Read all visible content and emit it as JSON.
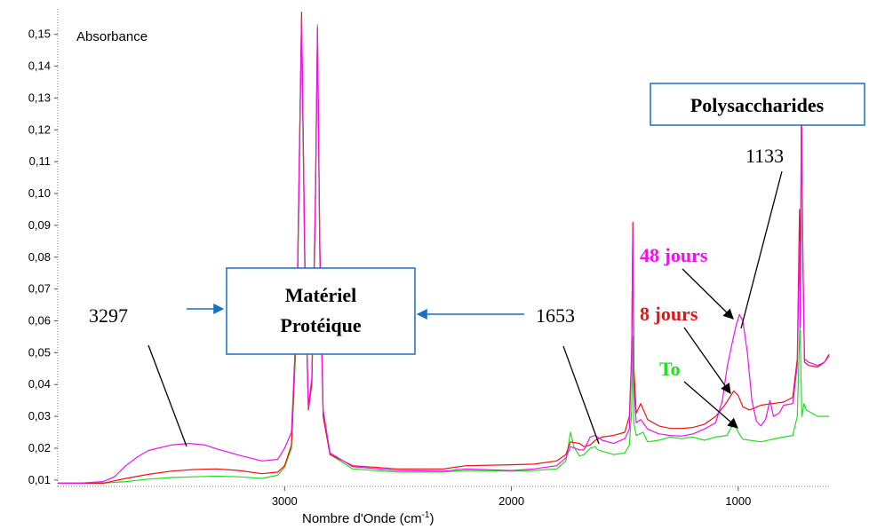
{
  "chart_data": {
    "type": "line",
    "title": "",
    "ylabel": "Absorbance",
    "xlabel_main": "Nombre d'Onde (cm",
    "xlabel_sup": "-1",
    "xlabel_close": ")",
    "x_reversed": true,
    "xlim": [
      4000,
      600
    ],
    "ylim": [
      0.008,
      0.158
    ],
    "y_ticks": [
      {
        "value": 0.01,
        "label": "0,01"
      },
      {
        "value": 0.02,
        "label": "0,02"
      },
      {
        "value": 0.03,
        "label": "0,03"
      },
      {
        "value": 0.04,
        "label": "0,04"
      },
      {
        "value": 0.05,
        "label": "0,05"
      },
      {
        "value": 0.06,
        "label": "0,06"
      },
      {
        "value": 0.07,
        "label": "0,07"
      },
      {
        "value": 0.08,
        "label": "0,08"
      },
      {
        "value": 0.09,
        "label": "0,09"
      },
      {
        "value": 0.1,
        "label": "0,10"
      },
      {
        "value": 0.11,
        "label": "0,11"
      },
      {
        "value": 0.12,
        "label": "0,12"
      },
      {
        "value": 0.13,
        "label": "0,13"
      },
      {
        "value": 0.14,
        "label": "0,14"
      },
      {
        "value": 0.15,
        "label": "0,15"
      }
    ],
    "x_ticks": [
      {
        "value": 3000,
        "label": "3000"
      },
      {
        "value": 2000,
        "label": "2000"
      },
      {
        "value": 1000,
        "label": "1000"
      }
    ],
    "series": [
      {
        "name": "To",
        "color": "#22dd22",
        "points": [
          [
            4000,
            0.009
          ],
          [
            3800,
            0.009
          ],
          [
            3700,
            0.0095
          ],
          [
            3600,
            0.0103
          ],
          [
            3500,
            0.0108
          ],
          [
            3400,
            0.011
          ],
          [
            3300,
            0.0112
          ],
          [
            3200,
            0.011
          ],
          [
            3100,
            0.0105
          ],
          [
            3030,
            0.0115
          ],
          [
            3000,
            0.014
          ],
          [
            2970,
            0.02
          ],
          [
            2945,
            0.06
          ],
          [
            2925,
            0.152
          ],
          [
            2910,
            0.07
          ],
          [
            2895,
            0.033
          ],
          [
            2880,
            0.04
          ],
          [
            2865,
            0.09
          ],
          [
            2855,
            0.153
          ],
          [
            2845,
            0.08
          ],
          [
            2830,
            0.03
          ],
          [
            2800,
            0.018
          ],
          [
            2700,
            0.0135
          ],
          [
            2500,
            0.0125
          ],
          [
            2300,
            0.0125
          ],
          [
            2200,
            0.013
          ],
          [
            2000,
            0.0128
          ],
          [
            1900,
            0.013
          ],
          [
            1800,
            0.0135
          ],
          [
            1760,
            0.016
          ],
          [
            1740,
            0.025
          ],
          [
            1725,
            0.0205
          ],
          [
            1700,
            0.0175
          ],
          [
            1680,
            0.018
          ],
          [
            1653,
            0.02
          ],
          [
            1630,
            0.0205
          ],
          [
            1620,
            0.0195
          ],
          [
            1550,
            0.018
          ],
          [
            1500,
            0.0185
          ],
          [
            1480,
            0.021
          ],
          [
            1470,
            0.032
          ],
          [
            1465,
            0.055
          ],
          [
            1460,
            0.028
          ],
          [
            1450,
            0.024
          ],
          [
            1420,
            0.025
          ],
          [
            1400,
            0.022
          ],
          [
            1350,
            0.0225
          ],
          [
            1300,
            0.0235
          ],
          [
            1250,
            0.023
          ],
          [
            1200,
            0.0235
          ],
          [
            1150,
            0.0225
          ],
          [
            1100,
            0.0235
          ],
          [
            1050,
            0.024
          ],
          [
            1020,
            0.028
          ],
          [
            1000,
            0.025
          ],
          [
            980,
            0.0228
          ],
          [
            900,
            0.022
          ],
          [
            850,
            0.0228
          ],
          [
            800,
            0.0235
          ],
          [
            760,
            0.024
          ],
          [
            740,
            0.03
          ],
          [
            728,
            0.06
          ],
          [
            720,
            0.03
          ],
          [
            710,
            0.034
          ],
          [
            700,
            0.032
          ],
          [
            650,
            0.03
          ],
          [
            600,
            0.03
          ]
        ]
      },
      {
        "name": "8 jours",
        "color": "#ee1111",
        "points": [
          [
            4000,
            0.009
          ],
          [
            3800,
            0.009
          ],
          [
            3700,
            0.0105
          ],
          [
            3600,
            0.0118
          ],
          [
            3500,
            0.0128
          ],
          [
            3400,
            0.0133
          ],
          [
            3300,
            0.0135
          ],
          [
            3200,
            0.013
          ],
          [
            3100,
            0.012
          ],
          [
            3030,
            0.0125
          ],
          [
            3000,
            0.0145
          ],
          [
            2970,
            0.021
          ],
          [
            2945,
            0.065
          ],
          [
            2925,
            0.157
          ],
          [
            2910,
            0.075
          ],
          [
            2895,
            0.032
          ],
          [
            2880,
            0.04
          ],
          [
            2865,
            0.095
          ],
          [
            2855,
            0.15
          ],
          [
            2845,
            0.085
          ],
          [
            2830,
            0.03
          ],
          [
            2800,
            0.018
          ],
          [
            2700,
            0.0145
          ],
          [
            2500,
            0.0135
          ],
          [
            2300,
            0.0135
          ],
          [
            2200,
            0.0145
          ],
          [
            2000,
            0.0148
          ],
          [
            1900,
            0.015
          ],
          [
            1800,
            0.016
          ],
          [
            1760,
            0.018
          ],
          [
            1740,
            0.022
          ],
          [
            1700,
            0.0215
          ],
          [
            1680,
            0.0205
          ],
          [
            1653,
            0.021
          ],
          [
            1630,
            0.0225
          ],
          [
            1600,
            0.0235
          ],
          [
            1550,
            0.024
          ],
          [
            1500,
            0.025
          ],
          [
            1480,
            0.03
          ],
          [
            1470,
            0.05
          ],
          [
            1465,
            0.091
          ],
          [
            1460,
            0.045
          ],
          [
            1450,
            0.031
          ],
          [
            1430,
            0.034
          ],
          [
            1400,
            0.029
          ],
          [
            1350,
            0.027
          ],
          [
            1300,
            0.0262
          ],
          [
            1250,
            0.0262
          ],
          [
            1200,
            0.0265
          ],
          [
            1150,
            0.0275
          ],
          [
            1100,
            0.03
          ],
          [
            1060,
            0.0335
          ],
          [
            1020,
            0.038
          ],
          [
            1000,
            0.0365
          ],
          [
            980,
            0.033
          ],
          [
            950,
            0.032
          ],
          [
            900,
            0.0335
          ],
          [
            850,
            0.034
          ],
          [
            800,
            0.0345
          ],
          [
            760,
            0.036
          ],
          [
            740,
            0.048
          ],
          [
            730,
            0.095
          ],
          [
            726,
            0.06
          ],
          [
            722,
            0.132
          ],
          [
            715,
            0.08
          ],
          [
            708,
            0.047
          ],
          [
            690,
            0.046
          ],
          [
            650,
            0.0455
          ],
          [
            620,
            0.047
          ],
          [
            600,
            0.0495
          ]
        ]
      },
      {
        "name": "48 jours",
        "color": "#ee11ee",
        "points": [
          [
            4000,
            0.009
          ],
          [
            3900,
            0.009
          ],
          [
            3800,
            0.0095
          ],
          [
            3750,
            0.011
          ],
          [
            3700,
            0.0145
          ],
          [
            3650,
            0.0172
          ],
          [
            3600,
            0.0193
          ],
          [
            3500,
            0.021
          ],
          [
            3420,
            0.0215
          ],
          [
            3350,
            0.021
          ],
          [
            3300,
            0.0198
          ],
          [
            3200,
            0.0178
          ],
          [
            3100,
            0.016
          ],
          [
            3030,
            0.0165
          ],
          [
            3000,
            0.02
          ],
          [
            2970,
            0.025
          ],
          [
            2945,
            0.065
          ],
          [
            2925,
            0.155
          ],
          [
            2910,
            0.075
          ],
          [
            2895,
            0.033
          ],
          [
            2880,
            0.042
          ],
          [
            2865,
            0.095
          ],
          [
            2855,
            0.152
          ],
          [
            2845,
            0.082
          ],
          [
            2830,
            0.032
          ],
          [
            2800,
            0.0185
          ],
          [
            2700,
            0.0142
          ],
          [
            2500,
            0.013
          ],
          [
            2300,
            0.0128
          ],
          [
            2200,
            0.0135
          ],
          [
            2000,
            0.013
          ],
          [
            1900,
            0.0135
          ],
          [
            1800,
            0.0145
          ],
          [
            1760,
            0.017
          ],
          [
            1740,
            0.0205
          ],
          [
            1700,
            0.0195
          ],
          [
            1680,
            0.0195
          ],
          [
            1653,
            0.0235
          ],
          [
            1630,
            0.024
          ],
          [
            1600,
            0.0225
          ],
          [
            1550,
            0.0215
          ],
          [
            1500,
            0.023
          ],
          [
            1480,
            0.026
          ],
          [
            1470,
            0.05
          ],
          [
            1465,
            0.088
          ],
          [
            1460,
            0.04
          ],
          [
            1450,
            0.028
          ],
          [
            1430,
            0.029
          ],
          [
            1400,
            0.026
          ],
          [
            1350,
            0.0245
          ],
          [
            1300,
            0.024
          ],
          [
            1250,
            0.0238
          ],
          [
            1200,
            0.0245
          ],
          [
            1150,
            0.026
          ],
          [
            1100,
            0.028
          ],
          [
            1070,
            0.035
          ],
          [
            1050,
            0.045
          ],
          [
            1030,
            0.052
          ],
          [
            1010,
            0.0585
          ],
          [
            995,
            0.062
          ],
          [
            980,
            0.06
          ],
          [
            960,
            0.05
          ],
          [
            940,
            0.035
          ],
          [
            920,
            0.0285
          ],
          [
            900,
            0.027
          ],
          [
            880,
            0.029
          ],
          [
            860,
            0.035
          ],
          [
            845,
            0.03
          ],
          [
            820,
            0.031
          ],
          [
            800,
            0.0335
          ],
          [
            760,
            0.034
          ],
          [
            740,
            0.046
          ],
          [
            730,
            0.085
          ],
          [
            726,
            0.058
          ],
          [
            722,
            0.13
          ],
          [
            715,
            0.078
          ],
          [
            708,
            0.048
          ],
          [
            690,
            0.047
          ],
          [
            650,
            0.046
          ],
          [
            620,
            0.047
          ],
          [
            600,
            0.049
          ]
        ]
      }
    ],
    "annotations": {
      "label_3297": "3297",
      "label_1653": "1653",
      "label_1133": "1133",
      "box_proteique_line1": "Matériel",
      "box_proteique_line2": "Protéique",
      "box_polysaccharides": "Polysaccharides",
      "label_48": "48 jours",
      "label_8": "8 jours",
      "label_to": "To"
    }
  }
}
